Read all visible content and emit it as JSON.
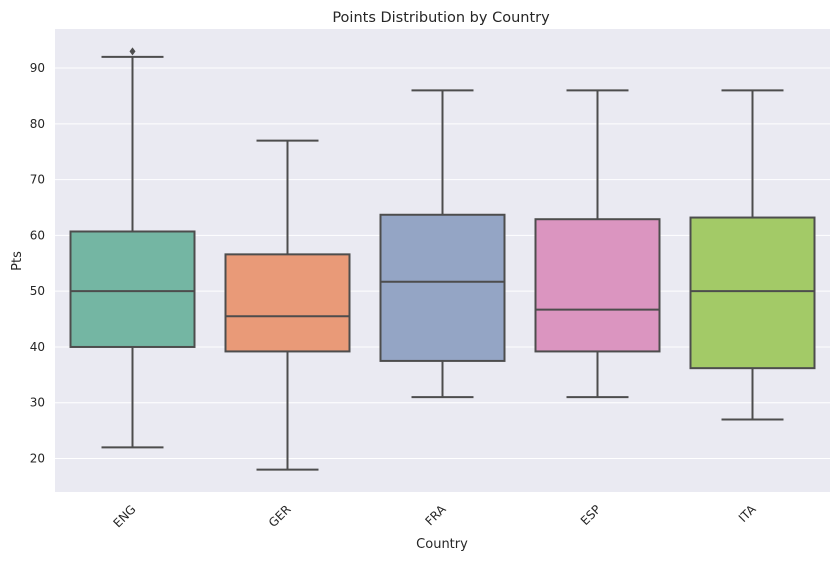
{
  "chart_data": {
    "type": "box",
    "title": "Points Distribution by Country",
    "xlabel": "Country",
    "ylabel": "Pts",
    "ylim": [
      14,
      97
    ],
    "yticks": [
      20,
      30,
      40,
      50,
      60,
      70,
      80,
      90
    ],
    "grid": true,
    "categories": [
      "ENG",
      "GER",
      "FRA",
      "ESP",
      "ITA"
    ],
    "boxes": [
      {
        "category": "ENG",
        "whisker_low": 22,
        "q1": 40,
        "median": 50,
        "q3": 60.7,
        "whisker_high": 92,
        "outliers": [
          93
        ],
        "color": "#74b6a3"
      },
      {
        "category": "GER",
        "whisker_low": 18,
        "q1": 39.2,
        "median": 45.5,
        "q3": 56.6,
        "whisker_high": 77,
        "outliers": [],
        "color": "#e99a78"
      },
      {
        "category": "FRA",
        "whisker_low": 31,
        "q1": 37.5,
        "median": 51.7,
        "q3": 63.7,
        "whisker_high": 86,
        "outliers": [],
        "color": "#94a5c5"
      },
      {
        "category": "ESP",
        "whisker_low": 31,
        "q1": 39.2,
        "median": 46.7,
        "q3": 62.9,
        "whisker_high": 86,
        "outliers": [],
        "color": "#db95c0"
      },
      {
        "category": "ITA",
        "whisker_low": 27,
        "q1": 36.2,
        "median": 50,
        "q3": 63.2,
        "whisker_high": 86,
        "outliers": [],
        "color": "#a3ca67"
      }
    ]
  }
}
